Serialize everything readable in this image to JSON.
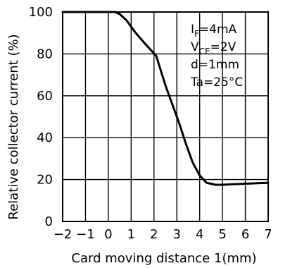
{
  "chart_data": {
    "type": "line",
    "title": "",
    "xlabel": "Card moving distance 1(mm)",
    "ylabel": "Relative collector current (%)",
    "xlim": [
      -2,
      7
    ],
    "ylim": [
      0,
      100
    ],
    "x_ticks": [
      -2,
      -1,
      0,
      1,
      2,
      3,
      4,
      5,
      6,
      7
    ],
    "x_tick_labels": [
      "−2",
      "−1",
      "0",
      "1",
      "2",
      "3",
      "4",
      "5",
      "6",
      "7"
    ],
    "y_ticks": [
      0,
      20,
      40,
      60,
      80,
      100
    ],
    "y_tick_labels": [
      "0",
      "20",
      "40",
      "60",
      "80",
      "100"
    ],
    "grid": true,
    "series": [
      {
        "x": [
          -2,
          -1,
          0,
          0.3,
          0.5,
          0.8,
          1.2,
          1.6,
          2.1,
          2.5,
          2.8,
          3.1,
          3.4,
          3.7,
          4.0,
          4.3,
          4.7,
          5.0,
          5.5,
          6.0,
          7.0
        ],
        "y": [
          100,
          100,
          100,
          100,
          99,
          96,
          90,
          85,
          79,
          65,
          56,
          47,
          37,
          28,
          22,
          18.5,
          17.5,
          17.5,
          17.8,
          18,
          18.5
        ]
      }
    ],
    "annotations": [
      "IF=4mA",
      "VCE=2V",
      "d=1mm",
      "Ta=25°C"
    ]
  },
  "annotation_parts": {
    "line1": {
      "main": "I",
      "sub": "F",
      "rest": "=4mA"
    },
    "line2": {
      "main": "V",
      "sub": "CE",
      "rest": "=2V"
    },
    "line3": "d=1mm",
    "line4": "Ta=25°C"
  }
}
